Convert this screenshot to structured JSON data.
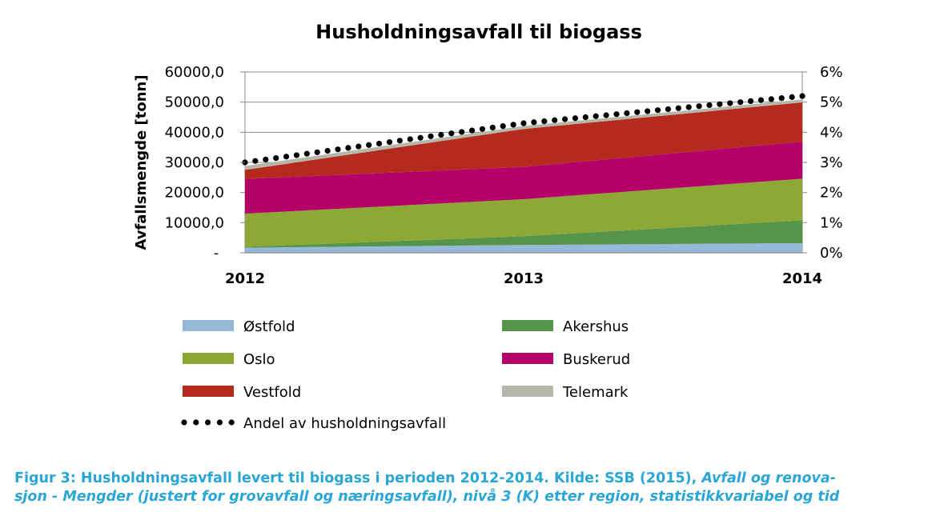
{
  "chart_data": {
    "type": "area",
    "title": "Husholdningsavfall til biogass",
    "xlabel": "",
    "ylabel": "Avfallsmengde [tonn]",
    "categories": [
      "2012",
      "2013",
      "2014"
    ],
    "stacked": true,
    "ylim": [
      0,
      60000
    ],
    "y_ticks": [
      "-",
      "10000,0",
      "20000,0",
      "30000,0",
      "40000,0",
      "50000,0",
      "60000,0"
    ],
    "y2lim": [
      0,
      6
    ],
    "y2_ticks": [
      "0%",
      "1%",
      "2%",
      "3%",
      "4%",
      "5%",
      "6%"
    ],
    "grid": true,
    "legend_placement": "bottom",
    "series": [
      {
        "name": "Østfold",
        "values": [
          1700,
          2600,
          3200
        ],
        "color": "#95b9d9"
      },
      {
        "name": "Akershus",
        "values": [
          300,
          2900,
          7600
        ],
        "color": "#56944a"
      },
      {
        "name": "Oslo",
        "values": [
          11000,
          12300,
          13800
        ],
        "color": "#8ea836"
      },
      {
        "name": "Buskerud",
        "values": [
          11500,
          10700,
          12300
        ],
        "color": "#b5006a"
      },
      {
        "name": "Vestfold",
        "values": [
          3000,
          12600,
          13000
        ],
        "color": "#b42a1c"
      },
      {
        "name": "Telemark",
        "values": [
          1300,
          1000,
          1000
        ],
        "color": "#b6b6ab"
      }
    ],
    "line_series": {
      "name": "Andel av husholdningsavfall",
      "axis": "secondary",
      "unit": "%",
      "values": [
        3.0,
        4.3,
        5.2
      ],
      "color": "#000000"
    }
  },
  "caption": {
    "prefix": "Figur 3: Husholdningsavfall levert til biogass i perioden 2012-2014. Kilde: SSB (2015), ",
    "italic_line1": "Avfall og renova-",
    "italic_line2": "sjon - Mengder (justert for grovavfall og næringsavfall), nivå 3 (K) etter region, statistikkvariabel og tid"
  }
}
